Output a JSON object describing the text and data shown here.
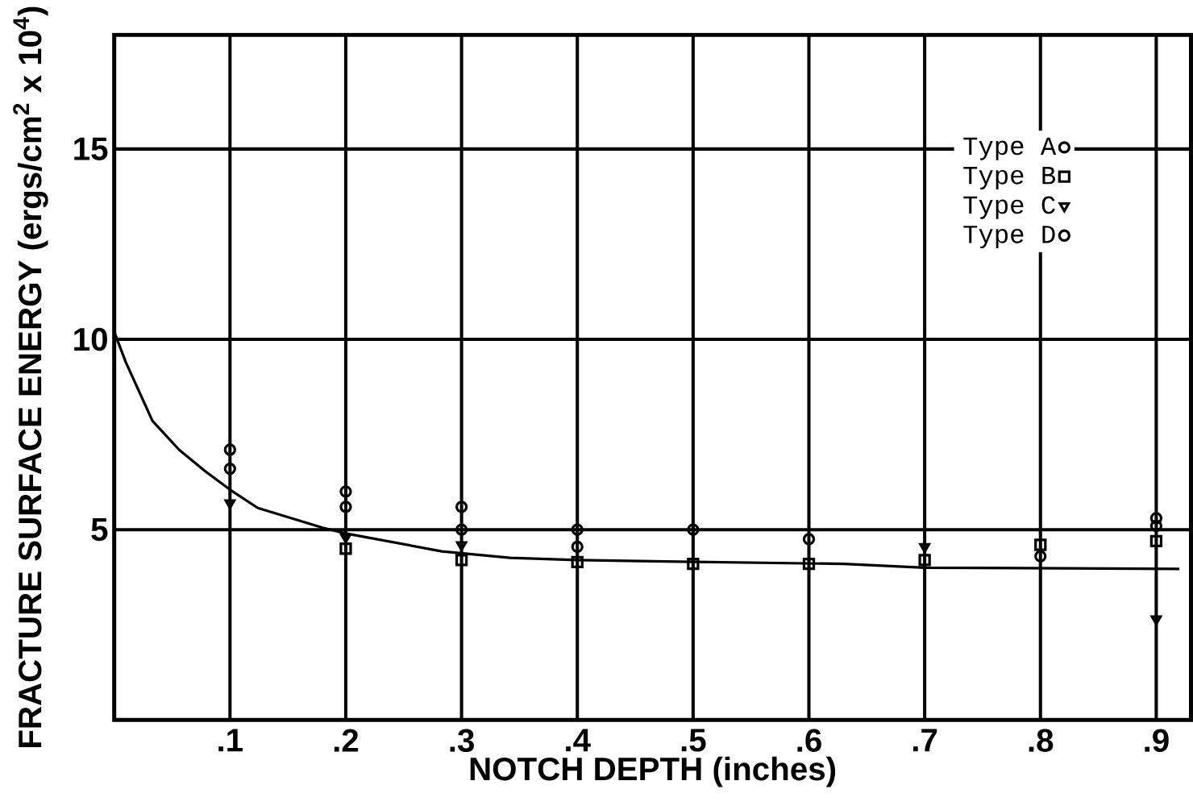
{
  "chart_data": {
    "type": "scatter",
    "xlabel": "NOTCH DEPTH (inches)",
    "ylabel": "FRACTURE SURFACE ENERGY (ergs/cm$^{2}$ x 10$^{4}$)",
    "x": [
      0.1,
      0.2,
      0.3,
      0.4,
      0.5,
      0.6,
      0.7,
      0.8,
      0.9
    ],
    "series": [
      {
        "name": "Type A",
        "color": "#000000",
        "marker": "circle",
        "values": [
          6.6,
          5.6,
          5.0,
          4.55,
          null,
          null,
          null,
          4.3,
          5.3
        ]
      },
      {
        "name": "Type B",
        "color": "#000000",
        "marker": "square",
        "values": [
          null,
          4.5,
          4.2,
          4.15,
          4.1,
          4.1,
          4.2,
          4.6,
          4.7
        ]
      },
      {
        "name": "Type C",
        "color": "#000000",
        "marker": "triangle",
        "values": [
          5.7,
          4.8,
          4.6,
          null,
          null,
          null,
          4.55,
          null,
          2.65
        ]
      },
      {
        "name": "Type D",
        "color": "#000000",
        "marker": "circle",
        "values": [
          7.1,
          6.0,
          5.6,
          5.0,
          5.0,
          4.75,
          null,
          null,
          5.1
        ]
      },
      {
        "type": "line",
        "color": "#000000",
        "marker": "none",
        "x": [
          0.0,
          0.01,
          0.033,
          0.056,
          0.078,
          0.1,
          0.124,
          0.18,
          0.2,
          0.283,
          0.342,
          0.4,
          0.488,
          0.63,
          0.7,
          0.92
        ],
        "values": [
          10.2,
          9.4,
          7.86,
          7.1,
          6.55,
          6.05,
          5.57,
          5.05,
          4.9,
          4.43,
          4.26,
          4.2,
          4.16,
          4.1,
          4.0,
          3.97
        ]
      }
    ],
    "xlim": [
      0,
      0.93
    ],
    "ylim": [
      0,
      18
    ],
    "xticks": [
      {
        "value": 0.1,
        "label": ".1"
      },
      {
        "value": 0.2,
        "label": ".2"
      },
      {
        "value": 0.3,
        "label": ".3"
      },
      {
        "value": 0.4,
        "label": ".4"
      },
      {
        "value": 0.5,
        "label": ".5"
      },
      {
        "value": 0.6,
        "label": ".6"
      },
      {
        "value": 0.7,
        "label": ".7"
      },
      {
        "value": 0.8,
        "label": ".8"
      },
      {
        "value": 0.9,
        "label": ".9"
      }
    ],
    "yticks": [
      5,
      10,
      15
    ],
    "grid": true,
    "legend": "top right"
  }
}
